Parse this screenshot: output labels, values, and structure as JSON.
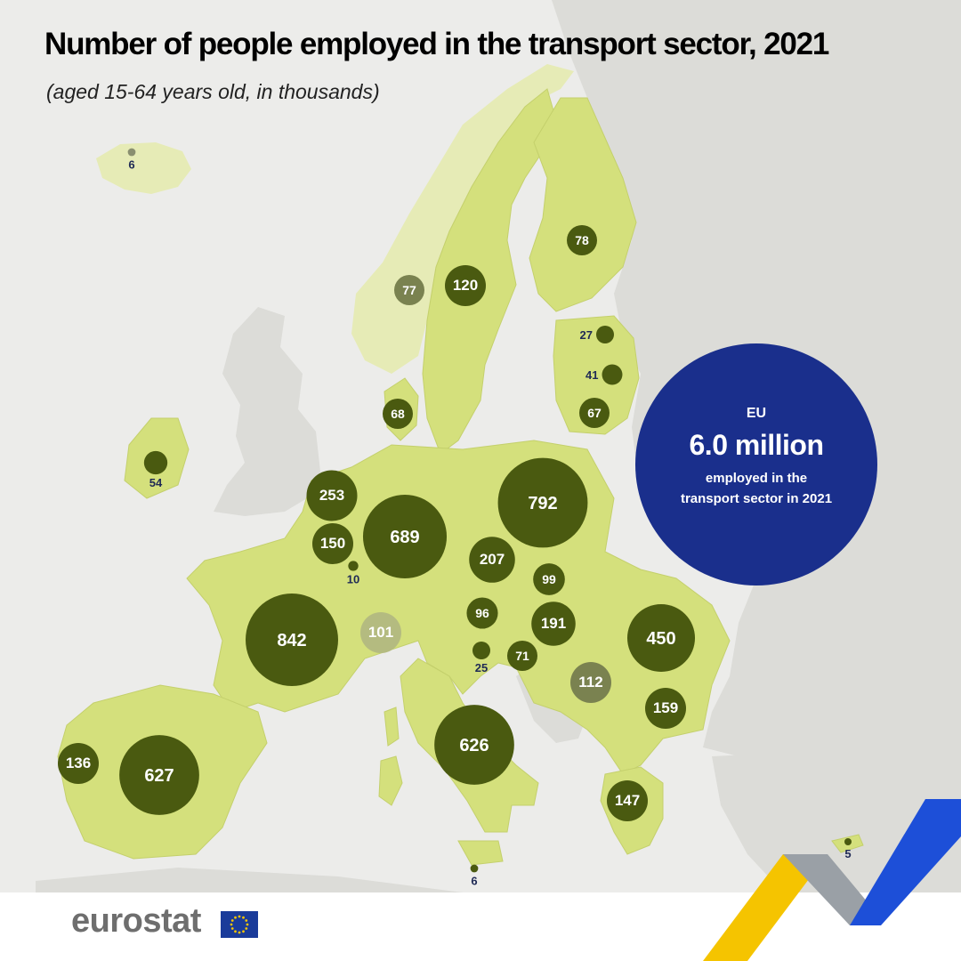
{
  "title": "Number of people employed in the transport sector, 2021",
  "subtitle": "(aged 15-64 years old, in thousands)",
  "eu_summary": {
    "label": "EU",
    "value": "6.0 million",
    "description": "employed in the transport sector in 2021"
  },
  "logo": {
    "text": "eurostat"
  },
  "colors": {
    "sea": "#ececea",
    "eu_land": "#d4e07c",
    "efta_land": "#e6ebb6",
    "other_land": "#dcdcd8",
    "bubble_eu": "#4a5a10",
    "bubble_efta": "#7a8250",
    "bubble_efta_light": "#b4bb80",
    "eu_circle": "#1a2f8c",
    "ribbon_yellow": "#f5c400",
    "ribbon_grey": "#9aa0a6",
    "ribbon_blue": "#1d4fd8"
  },
  "countries": [
    {
      "key": "IS",
      "value": "6",
      "category": "efta"
    },
    {
      "key": "NO",
      "value": "77",
      "category": "efta"
    },
    {
      "key": "SE",
      "value": "120",
      "category": "eu"
    },
    {
      "key": "FI",
      "value": "78",
      "category": "eu"
    },
    {
      "key": "EE",
      "value": "27",
      "category": "eu"
    },
    {
      "key": "LV",
      "value": "41",
      "category": "eu"
    },
    {
      "key": "LT",
      "value": "67",
      "category": "eu"
    },
    {
      "key": "DK",
      "value": "68",
      "category": "eu"
    },
    {
      "key": "IE",
      "value": "54",
      "category": "eu"
    },
    {
      "key": "NL",
      "value": "253",
      "category": "eu"
    },
    {
      "key": "BE",
      "value": "150",
      "category": "eu"
    },
    {
      "key": "LU",
      "value": "10",
      "category": "eu"
    },
    {
      "key": "DE",
      "value": "689",
      "category": "eu"
    },
    {
      "key": "PL",
      "value": "792",
      "category": "eu"
    },
    {
      "key": "CZ",
      "value": "207",
      "category": "eu"
    },
    {
      "key": "SK",
      "value": "99",
      "category": "eu"
    },
    {
      "key": "AT",
      "value": "96",
      "category": "eu"
    },
    {
      "key": "HU",
      "value": "191",
      "category": "eu"
    },
    {
      "key": "RO",
      "value": "450",
      "category": "eu"
    },
    {
      "key": "FR",
      "value": "842",
      "category": "eu"
    },
    {
      "key": "CH",
      "value": "101",
      "category": "efta"
    },
    {
      "key": "SI",
      "value": "25",
      "category": "eu"
    },
    {
      "key": "HR",
      "value": "71",
      "category": "eu"
    },
    {
      "key": "RS",
      "value": "112",
      "category": "other"
    },
    {
      "key": "BG",
      "value": "159",
      "category": "eu"
    },
    {
      "key": "IT",
      "value": "626",
      "category": "eu"
    },
    {
      "key": "ES",
      "value": "627",
      "category": "eu"
    },
    {
      "key": "PT",
      "value": "136",
      "category": "eu"
    },
    {
      "key": "EL",
      "value": "147",
      "category": "eu"
    },
    {
      "key": "MT",
      "value": "6",
      "category": "eu"
    },
    {
      "key": "CY",
      "value": "5",
      "category": "eu"
    }
  ]
}
